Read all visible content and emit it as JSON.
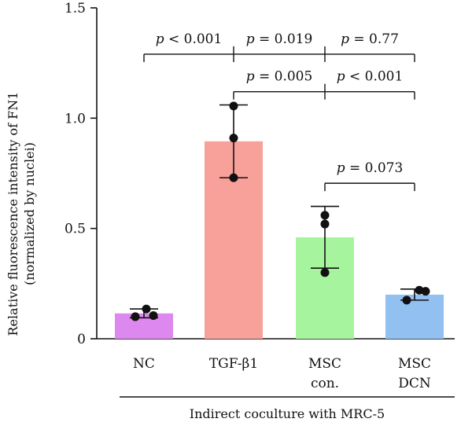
{
  "chart_data": {
    "type": "bar",
    "ylabel_lines": [
      "Relative fluorescence intensity of FN1",
      "(normalized by nuclei)"
    ],
    "ylim": [
      0,
      1.5
    ],
    "yticks": [
      0,
      0.5,
      1.0,
      1.5
    ],
    "ytick_labels": [
      "0",
      "0.5",
      "1.0",
      "1.5"
    ],
    "categories": [
      {
        "label": [
          "NC"
        ],
        "mean": 0.115,
        "err_low": 0.095,
        "err_high": 0.135,
        "points": [
          0.1,
          0.135,
          0.105
        ],
        "color": "#dd88ee"
      },
      {
        "label": [
          "TGF-β1"
        ],
        "mean": 0.895,
        "err_low": 0.73,
        "err_high": 1.06,
        "points": [
          1.055,
          0.91,
          0.73
        ],
        "color": "#f8a09a"
      },
      {
        "label": [
          "MSC",
          "con."
        ],
        "mean": 0.46,
        "err_low": 0.32,
        "err_high": 0.6,
        "points": [
          0.56,
          0.52,
          0.3
        ],
        "color": "#a6f59e"
      },
      {
        "label": [
          "MSC",
          "DCN"
        ],
        "mean": 0.2,
        "err_low": 0.175,
        "err_high": 0.225,
        "points": [
          0.175,
          0.22,
          0.215
        ],
        "color": "#92c0f1"
      }
    ],
    "comparisons": [
      {
        "from": 0,
        "to": 3,
        "level": 1.29,
        "ticks": [
          0,
          1,
          2,
          3
        ],
        "labels": [
          {
            "text": "p < 0.001",
            "between": [
              0,
              1
            ]
          },
          {
            "text": "p = 0.019",
            "between": [
              1,
              2
            ]
          },
          {
            "text": "p = 0.77",
            "between": [
              2,
              3
            ]
          }
        ]
      },
      {
        "from": 1,
        "to": 3,
        "level": 1.12,
        "ticks": [
          1,
          2,
          3
        ],
        "labels": [
          {
            "text": "p = 0.005",
            "between": [
              1,
              2
            ]
          },
          {
            "text": "p < 0.001",
            "between": [
              2,
              3
            ]
          }
        ]
      },
      {
        "from": 2,
        "to": 3,
        "level": 0.705,
        "ticks": [
          2,
          3
        ],
        "labels": [
          {
            "text": "p = 0.073",
            "between": [
              2,
              3
            ]
          }
        ]
      }
    ],
    "group_label": "Indirect coculture with MRC-5"
  }
}
